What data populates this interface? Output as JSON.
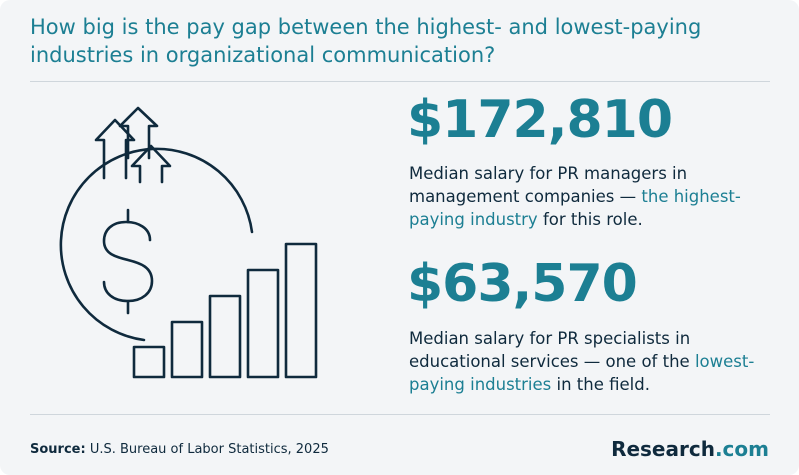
{
  "title": "How big is the pay gap between the highest- and lowest-paying industries in organizational communication?",
  "stats": [
    {
      "value": "$172,810",
      "desc_prefix": "Median salary for PR managers in management companies — ",
      "desc_highlight": "the highest-paying industry",
      "desc_suffix": " for this role."
    },
    {
      "value": "$63,570",
      "desc_prefix": "Median salary for PR specialists in educational services — one of the ",
      "desc_highlight": "lowest-paying industries",
      "desc_suffix": " in the field."
    }
  ],
  "source": {
    "label": "Source:",
    "text": " U.S. Bureau of Labor Statistics, 2025"
  },
  "logo": {
    "name": "Research",
    "suffix": ".com"
  },
  "colors": {
    "accent": "#1c7f93",
    "text": "#0f2a3d",
    "background": "#f3f5f7"
  },
  "icons": [
    "arrow-up-icon",
    "dollar-circle-icon",
    "bar-steps-icon"
  ]
}
